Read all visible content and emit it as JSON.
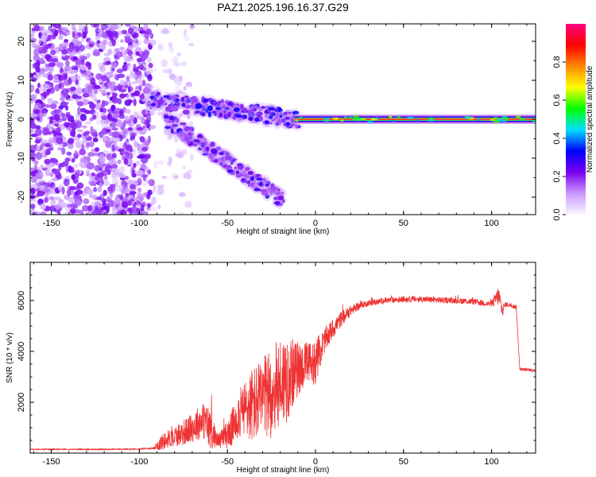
{
  "chart_data": [
    {
      "type": "heatmap",
      "title": "PAZ1.2025.196.16.37.G29",
      "xlabel": "Height of straight line (km)",
      "ylabel": "Frequency (Hz)",
      "xlim": [
        -162,
        125
      ],
      "ylim": [
        -24.5,
        24.5
      ],
      "x_ticks": [
        -150,
        -100,
        -50,
        0,
        50,
        100
      ],
      "y_ticks": [
        -20,
        -10,
        0,
        10,
        20
      ],
      "grid": false,
      "colorbar": {
        "label": "Normalized spectral amplitude",
        "range": [
          0,
          1
        ],
        "ticks": [
          0.0,
          0.2,
          0.4,
          0.6,
          0.8
        ],
        "colormap": [
          "#f8f8ff",
          "#cc99ff",
          "#7700ee",
          "#0000ff",
          "#00e0ff",
          "#00ff00",
          "#ffff00",
          "#ff8800",
          "#ff0000",
          "#ff0080"
        ]
      },
      "features": [
        {
          "region": "noise",
          "x_range": [
            -162,
            -93
          ],
          "freq_range": [
            -24.5,
            24.5
          ],
          "amplitude_range": [
            0.05,
            0.25
          ]
        },
        {
          "region": "sparse-noise",
          "x_range": [
            -93,
            -70
          ],
          "freq_range": [
            -24.5,
            24.5
          ],
          "amplitude_range": [
            0.02,
            0.1
          ]
        },
        {
          "region": "multipath-upper",
          "x_range": [
            -93,
            -10
          ],
          "freq_start": 5,
          "freq_end": 0,
          "amplitude_range": [
            0.15,
            0.35
          ]
        },
        {
          "region": "multipath-lower",
          "x_range": [
            -85,
            -18
          ],
          "freq_start": 0,
          "freq_end": -21,
          "amplitude_range": [
            0.15,
            0.3
          ]
        },
        {
          "region": "carrier-line",
          "x_range": [
            -12,
            125
          ],
          "frequency": 0,
          "amplitude": 0.95
        }
      ]
    },
    {
      "type": "line",
      "xlabel": "Height of straight line (km)",
      "ylabel": "SNR (10 * v/v)",
      "xlim": [
        -162,
        125
      ],
      "ylim": [
        0,
        7500
      ],
      "x_ticks": [
        -150,
        -100,
        -50,
        0,
        50,
        100
      ],
      "y_ticks": [
        2000,
        4000,
        6000
      ],
      "grid": false,
      "series": [
        {
          "color": "#ee3333",
          "x": [
            -162,
            -140,
            -120,
            -100,
            -92,
            -88,
            -84,
            -80,
            -76,
            -72,
            -68,
            -64,
            -60,
            -56,
            -52,
            -48,
            -44,
            -40,
            -36,
            -32,
            -28,
            -24,
            -20,
            -16,
            -12,
            -8,
            -4,
            0,
            5,
            10,
            15,
            20,
            25,
            30,
            35,
            40,
            50,
            60,
            70,
            80,
            90,
            95,
            100,
            104,
            106,
            108,
            112,
            114,
            116,
            125
          ],
          "y": [
            150,
            150,
            150,
            160,
            200,
            400,
            550,
            650,
            800,
            900,
            1100,
            1300,
            1000,
            500,
            600,
            900,
            1500,
            1700,
            1900,
            2000,
            2200,
            2400,
            2800,
            3000,
            3200,
            3400,
            3500,
            3600,
            4400,
            4900,
            5300,
            5600,
            5800,
            5900,
            5950,
            6000,
            6050,
            6050,
            6020,
            6000,
            5950,
            5900,
            5850,
            6200,
            5600,
            5850,
            5800,
            5750,
            3300,
            3250
          ],
          "noise_amplitude": [
            20,
            20,
            20,
            20,
            40,
            300,
            350,
            400,
            500,
            550,
            650,
            700,
            900,
            250,
            450,
            700,
            900,
            1200,
            1500,
            1600,
            1700,
            1800,
            1800,
            1800,
            1200,
            1000,
            900,
            900,
            500,
            400,
            300,
            200,
            150,
            120,
            120,
            120,
            120,
            120,
            120,
            120,
            120,
            120,
            120,
            400,
            300,
            100,
            100,
            80,
            60,
            60
          ]
        }
      ]
    }
  ]
}
